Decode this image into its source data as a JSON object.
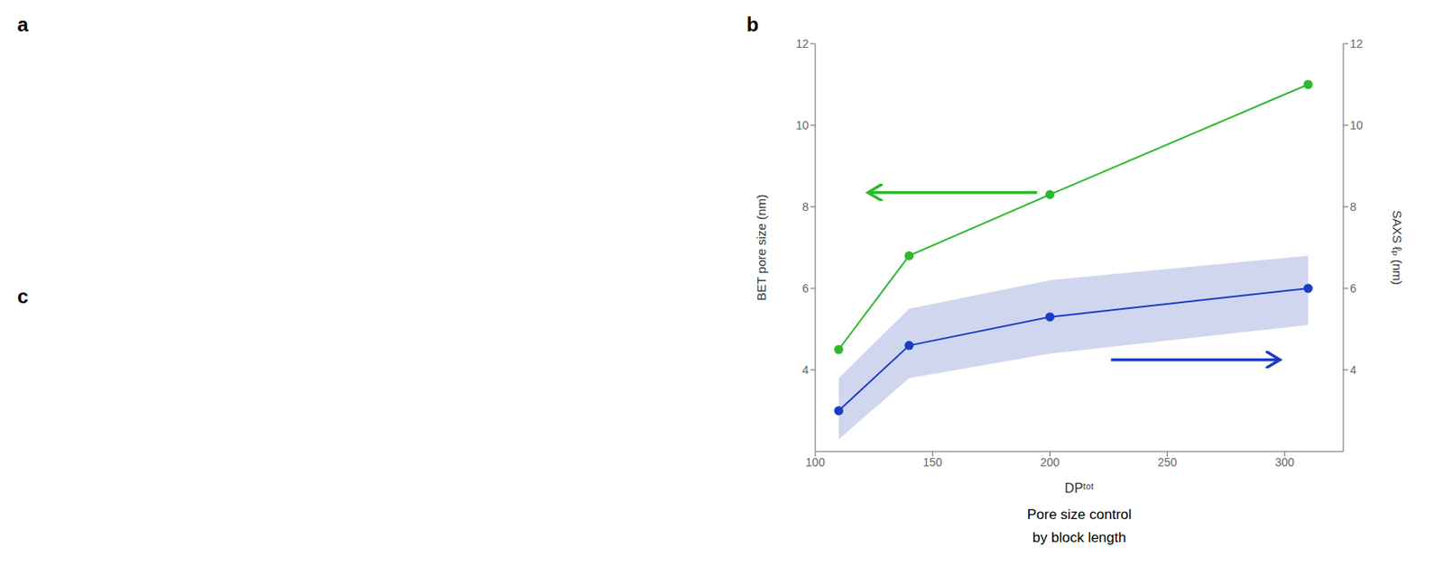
{
  "chart_data": {
    "type": "line",
    "x": [
      110,
      140,
      200,
      310
    ],
    "xlabel": "DPᵗᵒᵗ",
    "ylabel": "BET pore size (nm)",
    "y2label": "SAXS ℓₚ (nm)",
    "subtitle": [
      "Pore size control",
      "by block length"
    ],
    "annotations": [
      "a",
      "b",
      "c"
    ],
    "xlim": [
      100,
      325
    ],
    "xticks": [
      100,
      150,
      200,
      250,
      300
    ],
    "ylim": [
      2,
      12
    ],
    "yticks": [
      4,
      6,
      8,
      10,
      12
    ],
    "y2lim": [
      2,
      12
    ],
    "y2ticks": [
      4,
      6,
      8,
      10,
      12
    ],
    "grid": false,
    "series": [
      {
        "type": "band",
        "color": "#aab4e0",
        "axis": "y2",
        "lower": [
          2.3,
          3.8,
          4.4,
          5.1
        ],
        "upper": [
          3.8,
          5.5,
          6.2,
          6.8
        ]
      },
      {
        "type": "line",
        "color": "#2db82d",
        "marker": "circle",
        "values": [
          4.5,
          6.8,
          8.3,
          11.0
        ]
      },
      {
        "type": "line",
        "color": "#1a3cc7",
        "marker": "circle",
        "axis": "y2",
        "values": [
          3.0,
          4.6,
          5.3,
          6.0
        ]
      }
    ]
  }
}
